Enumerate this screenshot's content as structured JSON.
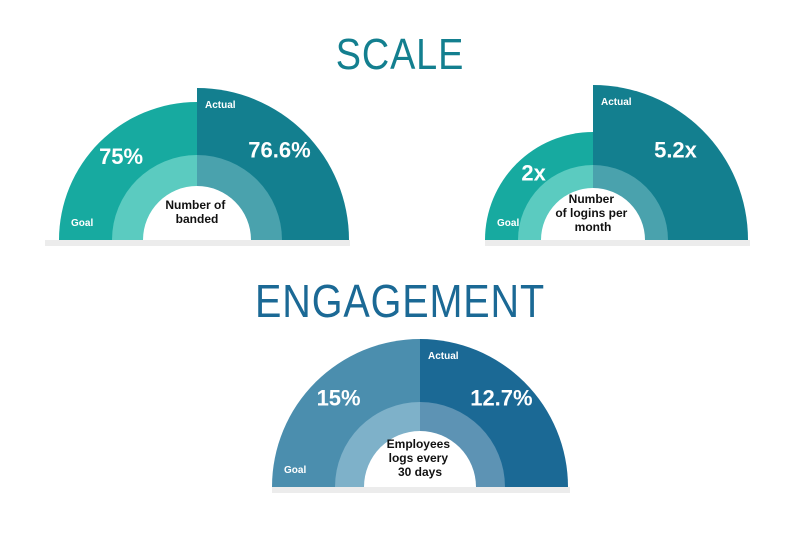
{
  "sections": {
    "scale_title": "SCALE",
    "engagement_title": "ENGAGEMENT"
  },
  "chart_data": [
    {
      "type": "gauge",
      "section": "SCALE",
      "goal": {
        "label": "Goal",
        "value_text": "75%"
      },
      "actual": {
        "label": "Actual",
        "value_text": "76.6%"
      },
      "center_label": [
        "Number of",
        "banded"
      ],
      "colors": {
        "goal": "#17aaa0",
        "actual": "#137f8f",
        "goal_ring": "#5bcbc0",
        "actual_ring": "#4aa2ad"
      }
    },
    {
      "type": "gauge",
      "section": "SCALE",
      "goal": {
        "label": "Goal",
        "value_text": "2x"
      },
      "actual": {
        "label": "Actual",
        "value_text": "5.2x"
      },
      "center_label": [
        "Number",
        "of logins per",
        "month"
      ],
      "colors": {
        "goal": "#17aaa0",
        "actual": "#137f8f",
        "goal_ring": "#5bcbc0",
        "actual_ring": "#4aa2ad"
      }
    },
    {
      "type": "gauge",
      "section": "ENGAGEMENT",
      "goal": {
        "label": "Goal",
        "value_text": "15%"
      },
      "actual": {
        "label": "Actual",
        "value_text": "12.7%"
      },
      "center_label": [
        "Employees",
        "logs every",
        "30 days"
      ],
      "colors": {
        "goal": "#4b8eae",
        "actual": "#1b6995",
        "goal_ring": "#7eb1c9",
        "actual_ring": "#5d93b4"
      }
    }
  ]
}
